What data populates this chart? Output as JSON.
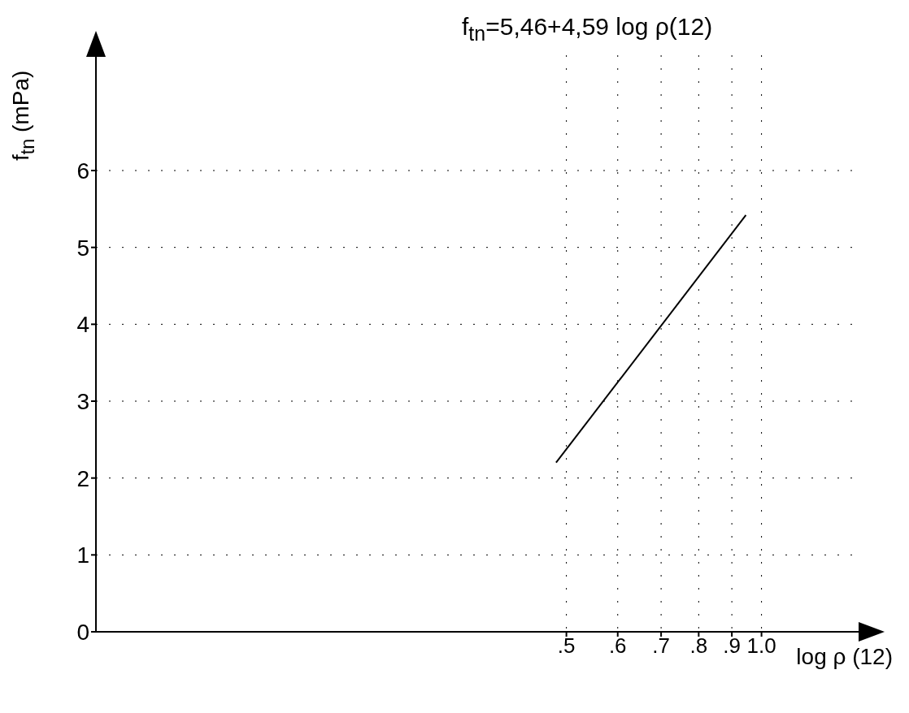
{
  "chart_data": {
    "type": "line",
    "title": "f$_{tn}$=5,46+4,59 log ρ(12)",
    "xlabel": "log ρ (12)",
    "ylabel": "f$_{tn}$ (mPa)",
    "series": [
      {
        "color": "#000000",
        "x": [
          0.482,
          0.946
        ],
        "values": [
          2.2,
          5.42
        ]
      }
    ],
    "log": "x",
    "xlim": [
      0.094,
      1.42
    ],
    "xticks": [
      {
        "value": 0.5,
        "label": ".5"
      },
      {
        "value": 0.6,
        "label": ".6"
      },
      {
        "value": 0.7,
        "label": ".7"
      },
      {
        "value": 0.8,
        "label": ".8"
      },
      {
        "value": 0.9,
        "label": ".9"
      },
      {
        "value": 1.0,
        "label": "1.0"
      }
    ],
    "ylim": [
      0,
      7.5
    ],
    "yticks": [
      0,
      1,
      2,
      3,
      4,
      5,
      6
    ],
    "grid": true,
    "marker": "none",
    "line_style": "solid"
  }
}
